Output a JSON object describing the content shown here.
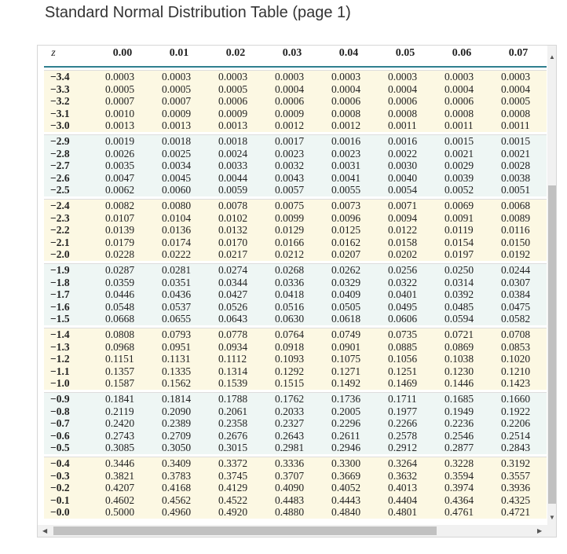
{
  "header": {
    "title": "Standard Normal Distribution Table (page 1)"
  },
  "table": {
    "columns": [
      "z",
      "0.00",
      "0.01",
      "0.02",
      "0.03",
      "0.04",
      "0.05",
      "0.06",
      "0.07"
    ],
    "rows": [
      [
        "−3.4",
        "0.0003",
        "0.0003",
        "0.0003",
        "0.0003",
        "0.0003",
        "0.0003",
        "0.0003",
        "0.0003"
      ],
      [
        "−3.3",
        "0.0005",
        "0.0005",
        "0.0005",
        "0.0004",
        "0.0004",
        "0.0004",
        "0.0004",
        "0.0004"
      ],
      [
        "−3.2",
        "0.0007",
        "0.0007",
        "0.0006",
        "0.0006",
        "0.0006",
        "0.0006",
        "0.0006",
        "0.0005"
      ],
      [
        "−3.1",
        "0.0010",
        "0.0009",
        "0.0009",
        "0.0009",
        "0.0008",
        "0.0008",
        "0.0008",
        "0.0008"
      ],
      [
        "−3.0",
        "0.0013",
        "0.0013",
        "0.0013",
        "0.0012",
        "0.0012",
        "0.0011",
        "0.0011",
        "0.0011"
      ],
      [
        "−2.9",
        "0.0019",
        "0.0018",
        "0.0018",
        "0.0017",
        "0.0016",
        "0.0016",
        "0.0015",
        "0.0015"
      ],
      [
        "−2.8",
        "0.0026",
        "0.0025",
        "0.0024",
        "0.0023",
        "0.0023",
        "0.0022",
        "0.0021",
        "0.0021"
      ],
      [
        "−2.7",
        "0.0035",
        "0.0034",
        "0.0033",
        "0.0032",
        "0.0031",
        "0.0030",
        "0.0029",
        "0.0028"
      ],
      [
        "−2.6",
        "0.0047",
        "0.0045",
        "0.0044",
        "0.0043",
        "0.0041",
        "0.0040",
        "0.0039",
        "0.0038"
      ],
      [
        "−2.5",
        "0.0062",
        "0.0060",
        "0.0059",
        "0.0057",
        "0.0055",
        "0.0054",
        "0.0052",
        "0.0051"
      ],
      [
        "−2.4",
        "0.0082",
        "0.0080",
        "0.0078",
        "0.0075",
        "0.0073",
        "0.0071",
        "0.0069",
        "0.0068"
      ],
      [
        "−2.3",
        "0.0107",
        "0.0104",
        "0.0102",
        "0.0099",
        "0.0096",
        "0.0094",
        "0.0091",
        "0.0089"
      ],
      [
        "−2.2",
        "0.0139",
        "0.0136",
        "0.0132",
        "0.0129",
        "0.0125",
        "0.0122",
        "0.0119",
        "0.0116"
      ],
      [
        "−2.1",
        "0.0179",
        "0.0174",
        "0.0170",
        "0.0166",
        "0.0162",
        "0.0158",
        "0.0154",
        "0.0150"
      ],
      [
        "−2.0",
        "0.0228",
        "0.0222",
        "0.0217",
        "0.0212",
        "0.0207",
        "0.0202",
        "0.0197",
        "0.0192"
      ],
      [
        "−1.9",
        "0.0287",
        "0.0281",
        "0.0274",
        "0.0268",
        "0.0262",
        "0.0256",
        "0.0250",
        "0.0244"
      ],
      [
        "−1.8",
        "0.0359",
        "0.0351",
        "0.0344",
        "0.0336",
        "0.0329",
        "0.0322",
        "0.0314",
        "0.0307"
      ],
      [
        "−1.7",
        "0.0446",
        "0.0436",
        "0.0427",
        "0.0418",
        "0.0409",
        "0.0401",
        "0.0392",
        "0.0384"
      ],
      [
        "−1.6",
        "0.0548",
        "0.0537",
        "0.0526",
        "0.0516",
        "0.0505",
        "0.0495",
        "0.0485",
        "0.0475"
      ],
      [
        "−1.5",
        "0.0668",
        "0.0655",
        "0.0643",
        "0.0630",
        "0.0618",
        "0.0606",
        "0.0594",
        "0.0582"
      ],
      [
        "−1.4",
        "0.0808",
        "0.0793",
        "0.0778",
        "0.0764",
        "0.0749",
        "0.0735",
        "0.0721",
        "0.0708"
      ],
      [
        "−1.3",
        "0.0968",
        "0.0951",
        "0.0934",
        "0.0918",
        "0.0901",
        "0.0885",
        "0.0869",
        "0.0853"
      ],
      [
        "−1.2",
        "0.1151",
        "0.1131",
        "0.1112",
        "0.1093",
        "0.1075",
        "0.1056",
        "0.1038",
        "0.1020"
      ],
      [
        "−1.1",
        "0.1357",
        "0.1335",
        "0.1314",
        "0.1292",
        "0.1271",
        "0.1251",
        "0.1230",
        "0.1210"
      ],
      [
        "−1.0",
        "0.1587",
        "0.1562",
        "0.1539",
        "0.1515",
        "0.1492",
        "0.1469",
        "0.1446",
        "0.1423"
      ],
      [
        "−0.9",
        "0.1841",
        "0.1814",
        "0.1788",
        "0.1762",
        "0.1736",
        "0.1711",
        "0.1685",
        "0.1660"
      ],
      [
        "−0.8",
        "0.2119",
        "0.2090",
        "0.2061",
        "0.2033",
        "0.2005",
        "0.1977",
        "0.1949",
        "0.1922"
      ],
      [
        "−0.7",
        "0.2420",
        "0.2389",
        "0.2358",
        "0.2327",
        "0.2296",
        "0.2266",
        "0.2236",
        "0.2206"
      ],
      [
        "−0.6",
        "0.2743",
        "0.2709",
        "0.2676",
        "0.2643",
        "0.2611",
        "0.2578",
        "0.2546",
        "0.2514"
      ],
      [
        "−0.5",
        "0.3085",
        "0.3050",
        "0.3015",
        "0.2981",
        "0.2946",
        "0.2912",
        "0.2877",
        "0.2843"
      ],
      [
        "−0.4",
        "0.3446",
        "0.3409",
        "0.3372",
        "0.3336",
        "0.3300",
        "0.3264",
        "0.3228",
        "0.3192"
      ],
      [
        "−0.3",
        "0.3821",
        "0.3783",
        "0.3745",
        "0.3707",
        "0.3669",
        "0.3632",
        "0.3594",
        "0.3557"
      ],
      [
        "−0.2",
        "0.4207",
        "0.4168",
        "0.4129",
        "0.4090",
        "0.4052",
        "0.4013",
        "0.3974",
        "0.3936"
      ],
      [
        "−0.1",
        "0.4602",
        "0.4562",
        "0.4522",
        "0.4483",
        "0.4443",
        "0.4404",
        "0.4364",
        "0.4325"
      ],
      [
        "−0.0",
        "0.5000",
        "0.4960",
        "0.4920",
        "0.4880",
        "0.4840",
        "0.4801",
        "0.4761",
        "0.4721"
      ]
    ]
  }
}
